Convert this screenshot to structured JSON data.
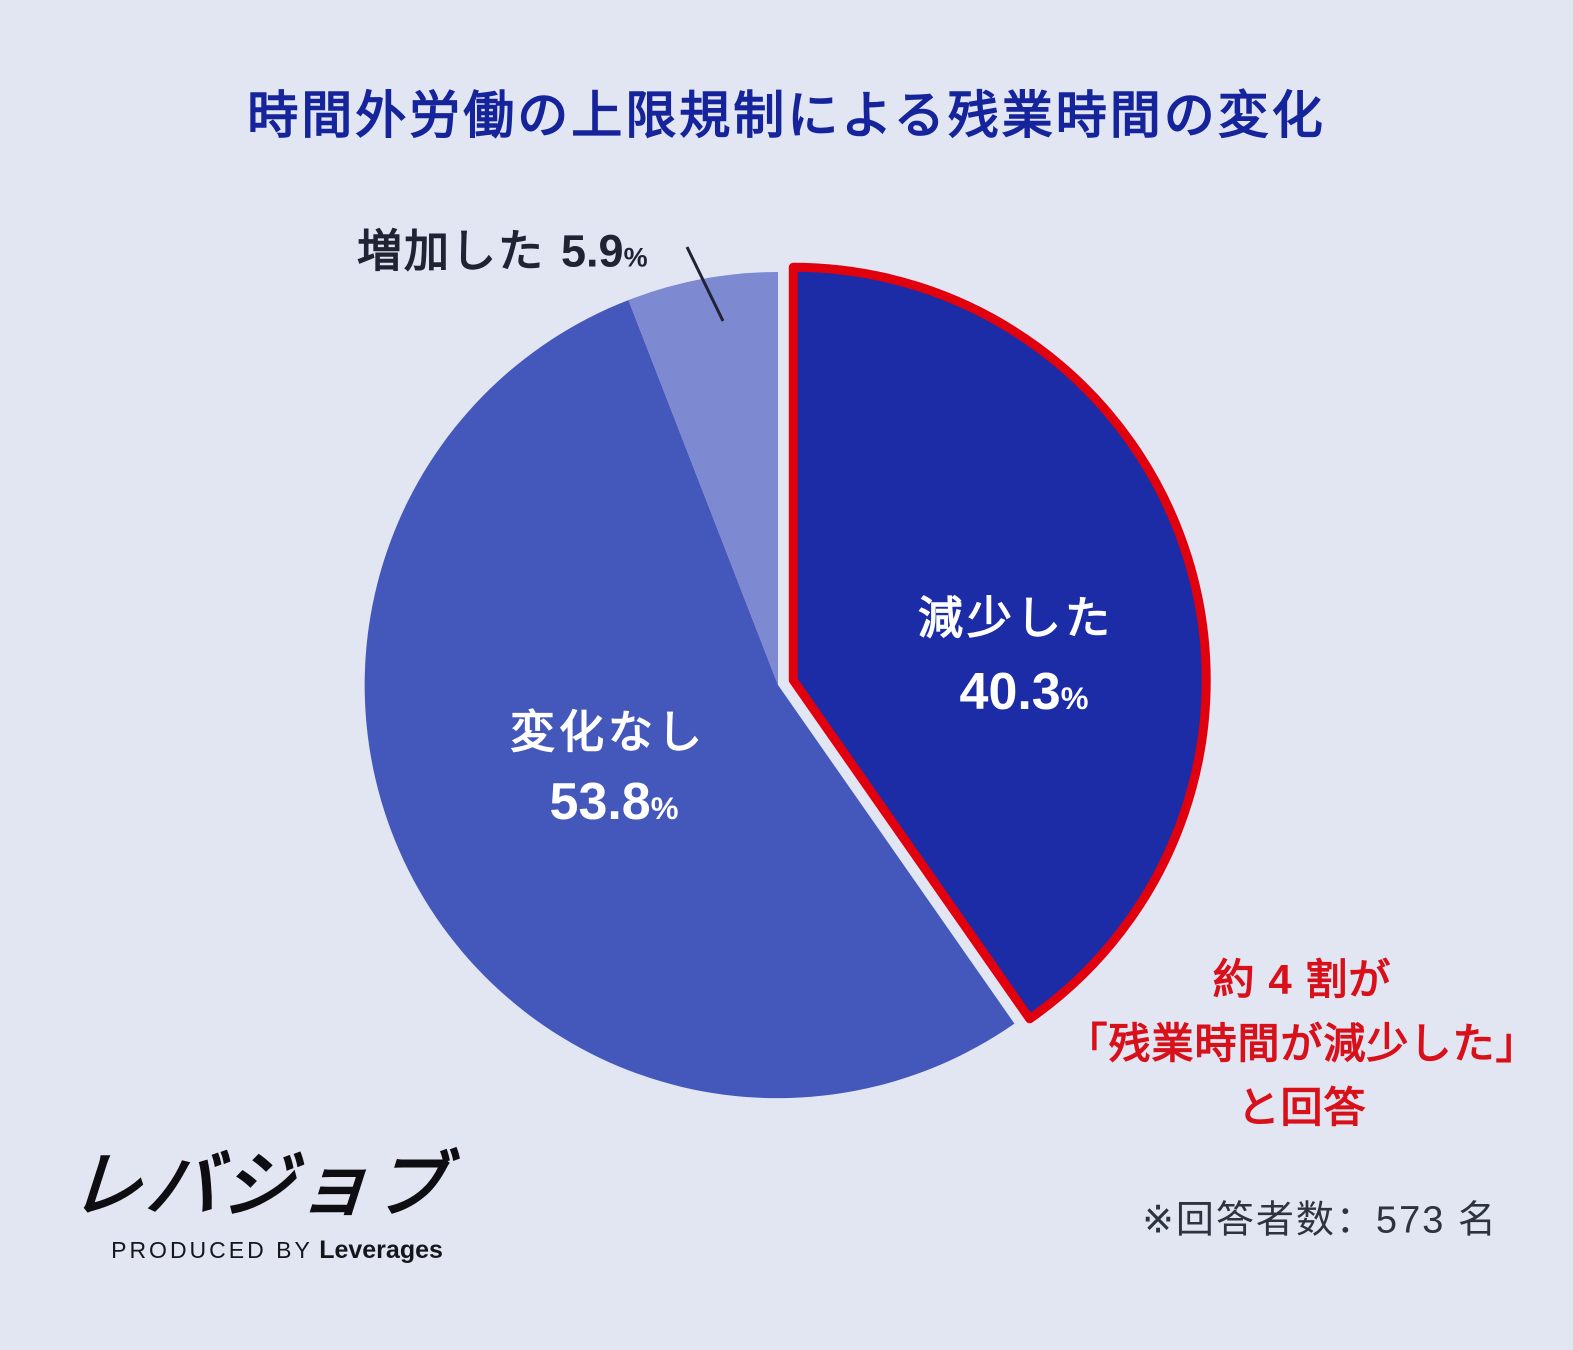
{
  "chart_data": {
    "type": "pie",
    "title": "時間外労働の上限規制による残業時間の変化",
    "direction": "clockwise",
    "start_angle_deg": 0,
    "legend_position": "labels-on-slices",
    "highlight_outline_color": "#e0000e",
    "slices": [
      {
        "id": "decreased",
        "label": "減少した",
        "value": 40.3,
        "unit": "%",
        "color": "#1b2ca6",
        "label_placement": "inside",
        "highlighted": true
      },
      {
        "id": "no-change",
        "label": "変化なし",
        "value": 53.8,
        "unit": "%",
        "color": "#4457bb",
        "label_placement": "inside",
        "highlighted": false
      },
      {
        "id": "increased",
        "label": "増加した",
        "value": 5.9,
        "unit": "%",
        "color": "#7d89d1",
        "label_placement": "outside-with-leader-line",
        "highlighted": false
      }
    ]
  },
  "annotation": {
    "color": "#d8101a",
    "lines": [
      "約 4 割が",
      "「残業時間が減少した」",
      "と回答"
    ]
  },
  "footnote": "※回答者数：573 名",
  "logo": {
    "name": "レバジョブ",
    "tagline_prefix": "PRODUCED BY",
    "tagline_brand": "Leverages"
  },
  "colors": {
    "background": "#e2e5f2",
    "title_text": "#16249c",
    "annotation_red": "#d8101a",
    "highlight_outline": "#e0000e",
    "inside_label_text": "#ffffff",
    "outside_label_text": "#1f2333",
    "footnote_text": "#2e3340"
  }
}
